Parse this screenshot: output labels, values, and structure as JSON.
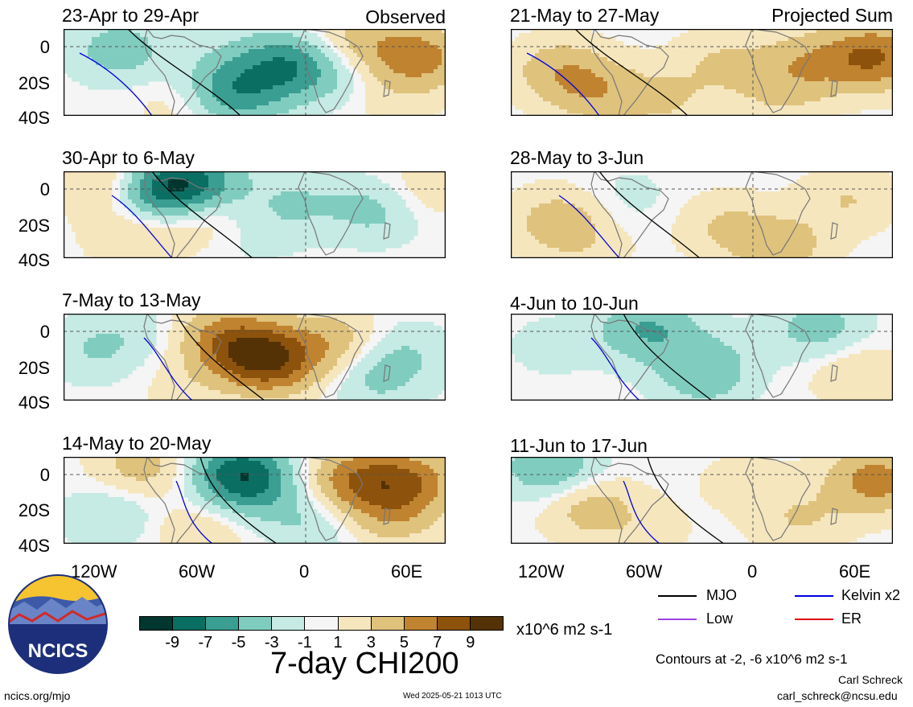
{
  "header": {
    "observed_label": "Observed",
    "projected_label": "Projected Sum"
  },
  "panels_left": [
    {
      "title": "23-Apr to 29-Apr"
    },
    {
      "title": "30-Apr to 6-May"
    },
    {
      "title": "7-May to 13-May"
    },
    {
      "title": "14-May to 20-May"
    }
  ],
  "panels_right": [
    {
      "title": "21-May to 27-May"
    },
    {
      "title": "28-May to 3-Jun"
    },
    {
      "title": "4-Jun to 10-Jun"
    },
    {
      "title": "11-Jun to 17-Jun"
    }
  ],
  "lat_labels": [
    "0",
    "20S",
    "40S"
  ],
  "lon_labels": [
    "120W",
    "60W",
    "0",
    "60E"
  ],
  "legend": {
    "mjo": "MJO",
    "low": "Low",
    "kelvin": "Kelvin x2",
    "er": "ER",
    "contours_note": "Contours at -2, -6 x10^6 m2 s-1",
    "colors": {
      "mjo": "#000000",
      "low": "#a040e0",
      "kelvin": "#0000e0",
      "er": "#e00000"
    }
  },
  "colorbar": {
    "labels": [
      "-9",
      "-7",
      "-5",
      "-3",
      "-1",
      "1",
      "3",
      "5",
      "7",
      "9"
    ],
    "units": "x10^6 m2 s-1",
    "colors": [
      "#00362e",
      "#0b6e63",
      "#3a9e92",
      "#80cdc0",
      "#c6eae4",
      "#f5f5f5",
      "#f5e6be",
      "#dfc27c",
      "#c08330",
      "#8d520c",
      "#543206"
    ]
  },
  "title": "7-day CHI200",
  "logo_text": "NCICS",
  "footer": {
    "url": "ncics.org/mjo",
    "timestamp": "Wed 2025-05-21 1013 UTC",
    "author": "Carl Schreck",
    "email": "carl_schreck@ncsu.edu"
  },
  "map_fields": {
    "left": [
      [
        [
          14,
          22,
          -3
        ],
        [
          40,
          75,
          -3
        ],
        [
          58,
          38,
          -5
        ],
        [
          47,
          70,
          -3
        ],
        [
          70,
          48,
          -2
        ],
        [
          75,
          15,
          3
        ],
        [
          92,
          30,
          5
        ],
        [
          42,
          30,
          -1
        ],
        [
          32,
          85,
          2
        ],
        [
          85,
          80,
          1
        ]
      ],
      [
        [
          12,
          10,
          3
        ],
        [
          25,
          20,
          -7
        ],
        [
          35,
          12,
          -5
        ],
        [
          60,
          35,
          -2
        ],
        [
          82,
          40,
          -3
        ],
        [
          48,
          70,
          -1
        ],
        [
          18,
          70,
          2
        ],
        [
          92,
          22,
          2
        ],
        [
          35,
          45,
          3
        ]
      ],
      [
        [
          48,
          42,
          5
        ],
        [
          55,
          55,
          5
        ],
        [
          40,
          20,
          3
        ],
        [
          70,
          30,
          3
        ],
        [
          8,
          40,
          -2
        ],
        [
          20,
          15,
          -1
        ],
        [
          80,
          75,
          -2
        ],
        [
          88,
          45,
          -2
        ],
        [
          30,
          80,
          1
        ]
      ],
      [
        [
          45,
          15,
          -6
        ],
        [
          50,
          35,
          -3
        ],
        [
          12,
          65,
          -2
        ],
        [
          90,
          25,
          5
        ],
        [
          75,
          25,
          5
        ],
        [
          85,
          65,
          3
        ],
        [
          20,
          8,
          3
        ],
        [
          65,
          75,
          -2
        ],
        [
          35,
          85,
          2
        ]
      ]
    ],
    "right": [
      [
        [
          12,
          45,
          3
        ],
        [
          22,
          70,
          3
        ],
        [
          55,
          35,
          2
        ],
        [
          78,
          35,
          3
        ],
        [
          95,
          30,
          6
        ],
        [
          70,
          70,
          2
        ],
        [
          40,
          80,
          2
        ]
      ],
      [
        [
          12,
          55,
          3
        ],
        [
          55,
          60,
          2
        ],
        [
          88,
          30,
          2
        ],
        [
          70,
          85,
          3
        ],
        [
          30,
          30,
          -1
        ],
        [
          20,
          85,
          1
        ]
      ],
      [
        [
          35,
          15,
          -4
        ],
        [
          50,
          50,
          -2
        ],
        [
          80,
          15,
          -3
        ],
        [
          50,
          75,
          -2
        ],
        [
          90,
          65,
          2
        ],
        [
          10,
          35,
          -1
        ]
      ],
      [
        [
          20,
          55,
          3
        ],
        [
          75,
          70,
          2
        ],
        [
          95,
          25,
          5
        ],
        [
          10,
          10,
          -4
        ],
        [
          60,
          25,
          1
        ],
        [
          35,
          85,
          1
        ]
      ]
    ]
  }
}
